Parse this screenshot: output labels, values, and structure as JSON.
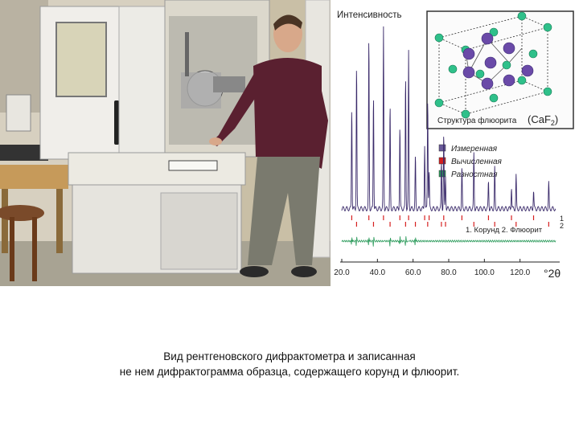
{
  "caption": {
    "line1": "Вид рентгеновского дифрактометра и записанная",
    "line2": "не нем дифрактограмма образца, содержащего корунд и флюорит."
  },
  "diffractogram": {
    "ylabel": "Интенсивность",
    "xlabel": "°2θ",
    "inset_title": "Структура флюорита",
    "inset_formula": "(CaF",
    "inset_formula_sub": "2",
    "inset_formula_end": ")",
    "legend": [
      {
        "label": "Измеренная",
        "color": "#6a5a9a"
      },
      {
        "label": "Вычисленная",
        "color": "#d62020"
      },
      {
        "label": "Разностная",
        "color": "#2a9a5a"
      }
    ],
    "phase_labels": {
      "row1": "1",
      "row2": "2",
      "text": "1. Корунд   2. Флюорит"
    }
  },
  "chart_data": {
    "type": "line",
    "xlabel": "°2θ",
    "ylabel": "Интенсивность",
    "xlim": [
      20,
      140
    ],
    "x_ticks": [
      "20.0",
      "40.0",
      "60.0",
      "80.0",
      "100.0",
      "120.0"
    ],
    "series": [
      {
        "name": "Измеренная",
        "peaks_2theta": [
          25.6,
          28.3,
          35.2,
          37.8,
          43.4,
          47.1,
          52.6,
          55.8,
          57.5,
          61.3,
          66.5,
          68.2,
          69.0,
          75.9,
          77.2,
          78.2,
          87.4,
          94.1,
          102.3,
          105.8,
          115.2,
          117.8,
          127.6,
          136.1
        ]
      },
      {
        "name": "Вычисленная"
      },
      {
        "name": "Разностная"
      }
    ]
  }
}
